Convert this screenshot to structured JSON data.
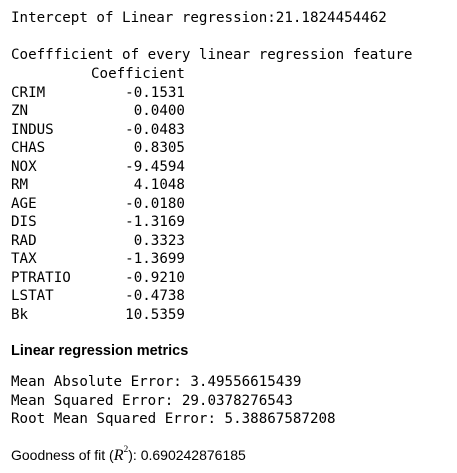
{
  "intercept_line": "Intercept of Linear regression:21.1824454462",
  "coefficients": {
    "title": "Coeffficient of every linear regression feature",
    "column_header": "Coefficient",
    "rows": [
      {
        "feature": "CRIM",
        "value": "-0.1531"
      },
      {
        "feature": "ZN",
        "value": "0.0400"
      },
      {
        "feature": "INDUS",
        "value": "-0.0483"
      },
      {
        "feature": "CHAS",
        "value": "0.8305"
      },
      {
        "feature": "NOX",
        "value": "-9.4594"
      },
      {
        "feature": "RM",
        "value": "4.1048"
      },
      {
        "feature": "AGE",
        "value": "-0.0180"
      },
      {
        "feature": "DIS",
        "value": "-1.3169"
      },
      {
        "feature": "RAD",
        "value": "0.3323"
      },
      {
        "feature": "TAX",
        "value": "-1.3699"
      },
      {
        "feature": "PTRATIO",
        "value": "-0.9210"
      },
      {
        "feature": "LSTAT",
        "value": "-0.4738"
      },
      {
        "feature": "Bk",
        "value": "10.5359"
      }
    ]
  },
  "metrics": {
    "heading": "Linear regression metrics",
    "mae": "Mean Absolute Error: 3.49556615439",
    "mse": "Mean Squared Error: 29.0378276543",
    "rmse": "Root Mean Squared Error: 5.38867587208"
  },
  "goodness": {
    "prefix": "Goodness of fit (",
    "symbol": "R",
    "exponent": "2",
    "suffix": "): 0.690242876185"
  }
}
